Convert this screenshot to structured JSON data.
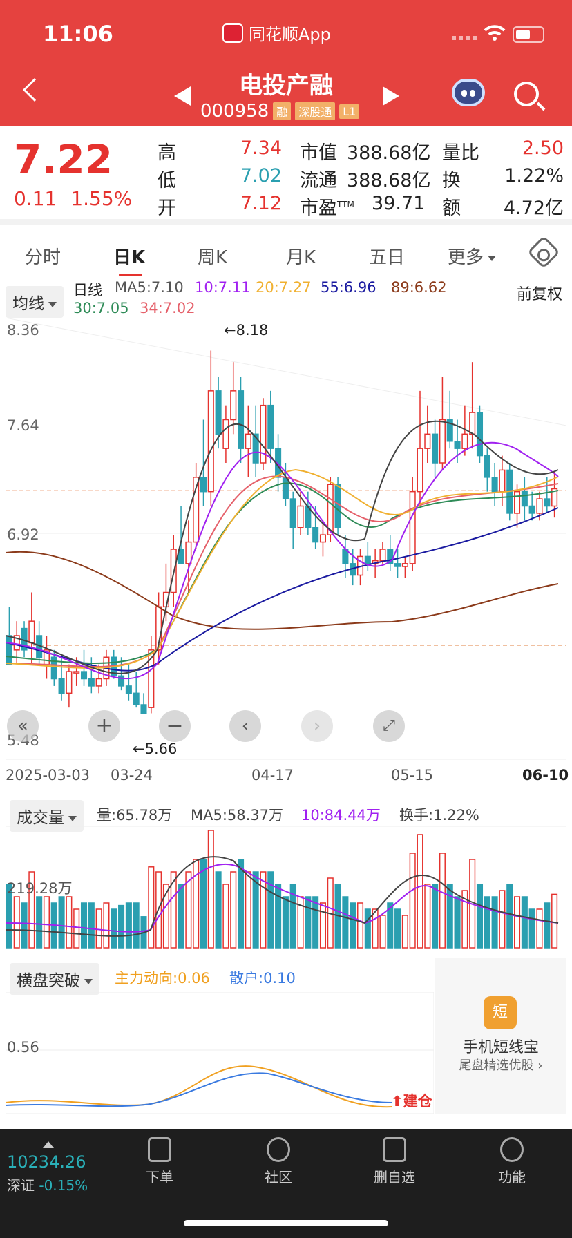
{
  "status_bar": {
    "time": "11:06",
    "app": "同花顺App"
  },
  "header": {
    "title": "电投产融",
    "code": "000958",
    "tags": [
      "融",
      "深股通",
      "L1"
    ]
  },
  "quote": {
    "price": "7.22",
    "change": "0.11",
    "change_pct": "1.55%",
    "rows": [
      {
        "l1": "高",
        "v1": "7.34",
        "l2": "市值",
        "v2": "388.68亿",
        "l3": "量比",
        "v3": "2.50"
      },
      {
        "l1": "低",
        "v1": "7.02",
        "l2": "流通",
        "v2": "388.68亿",
        "l3": "换",
        "v3": "1.22%"
      },
      {
        "l1": "开",
        "v1": "7.12",
        "l2": "市盈",
        "v2": "39.71",
        "l3": "额",
        "v3": "4.72亿"
      }
    ],
    "pe_sup": "TTM",
    "colors": {
      "up": "#e5322e",
      "down": "#2a9fb0"
    }
  },
  "tabs": [
    "分时",
    "日K",
    "周K",
    "月K",
    "五日",
    "更多"
  ],
  "active_tab": "日K",
  "ma_panel": {
    "selector": "均线",
    "period": "日线",
    "rights": "前复权",
    "items": [
      {
        "label": "MA5:7.10",
        "color": "#555555"
      },
      {
        "label": "10:7.11",
        "color": "#a020f0"
      },
      {
        "label": "20:7.27",
        "color": "#f0b030"
      },
      {
        "label": "55:6.96",
        "color": "#1a1aa0"
      },
      {
        "label": "89:6.62",
        "color": "#8b3a1a"
      },
      {
        "label": "30:7.05",
        "color": "#2e8b57"
      },
      {
        "label": "34:7.02",
        "color": "#e5606a"
      }
    ],
    "y_labels": [
      "8.36",
      "7.64",
      "6.92",
      "5.48"
    ],
    "max_note": "←8.18",
    "min_note": "←5.66",
    "x_labels": [
      "2025-03-03",
      "03-24",
      "04-17",
      "05-15",
      "06-10"
    ]
  },
  "chart_data": {
    "type": "candlestick",
    "ylim": [
      5.48,
      8.36
    ],
    "ohlc": [
      [
        6.2,
        6.4,
        6.0,
        6.0
      ],
      [
        6.1,
        6.3,
        6.0,
        6.2
      ],
      [
        6.25,
        6.3,
        6.05,
        6.1
      ],
      [
        6.15,
        6.5,
        6.0,
        6.3
      ],
      [
        6.2,
        6.3,
        6.0,
        6.05
      ],
      [
        6.0,
        6.2,
        5.9,
        6.1
      ],
      [
        6.05,
        6.1,
        5.85,
        5.9
      ],
      [
        5.9,
        6.05,
        5.75,
        5.8
      ],
      [
        5.8,
        6.0,
        5.7,
        5.95
      ],
      [
        5.95,
        6.05,
        5.85,
        5.95
      ],
      [
        5.95,
        6.1,
        5.85,
        5.9
      ],
      [
        5.9,
        6.05,
        5.8,
        5.85
      ],
      [
        5.85,
        6.0,
        5.8,
        5.9
      ],
      [
        5.9,
        6.1,
        5.85,
        6.05
      ],
      [
        6.05,
        6.1,
        5.9,
        5.92
      ],
      [
        5.92,
        6.05,
        5.82,
        5.85
      ],
      [
        5.85,
        6.0,
        5.75,
        5.8
      ],
      [
        5.8,
        5.95,
        5.7,
        5.72
      ],
      [
        5.72,
        5.8,
        5.66,
        5.66
      ],
      [
        5.7,
        6.2,
        5.66,
        6.1
      ],
      [
        6.1,
        6.5,
        6.0,
        6.4
      ],
      [
        6.4,
        6.7,
        6.3,
        6.5
      ],
      [
        6.5,
        6.9,
        6.4,
        6.8
      ],
      [
        6.8,
        7.1,
        6.7,
        6.7
      ],
      [
        6.7,
        7.0,
        6.5,
        6.85
      ],
      [
        6.85,
        7.4,
        6.8,
        7.3
      ],
      [
        7.3,
        7.7,
        7.1,
        7.2
      ],
      [
        7.2,
        8.18,
        7.1,
        7.9
      ],
      [
        7.9,
        8.0,
        7.5,
        7.6
      ],
      [
        7.5,
        7.8,
        7.4,
        7.7
      ],
      [
        7.7,
        8.1,
        7.6,
        7.9
      ],
      [
        7.9,
        8.0,
        7.4,
        7.5
      ],
      [
        7.5,
        7.8,
        7.3,
        7.6
      ],
      [
        7.6,
        7.8,
        7.3,
        7.4
      ],
      [
        7.4,
        7.85,
        7.35,
        7.8
      ],
      [
        7.8,
        7.9,
        7.4,
        7.5
      ],
      [
        7.5,
        7.6,
        7.2,
        7.3
      ],
      [
        7.3,
        7.4,
        7.1,
        7.15
      ],
      [
        7.15,
        7.2,
        6.8,
        6.95
      ],
      [
        6.95,
        7.2,
        6.9,
        7.1
      ],
      [
        7.1,
        7.2,
        6.9,
        6.95
      ],
      [
        6.95,
        7.1,
        6.8,
        6.85
      ],
      [
        6.85,
        7.0,
        6.75,
        6.9
      ],
      [
        6.9,
        7.3,
        6.85,
        7.25
      ],
      [
        7.25,
        7.3,
        6.9,
        6.95
      ],
      [
        6.8,
        6.9,
        6.6,
        6.7
      ],
      [
        6.7,
        6.8,
        6.55,
        6.62
      ],
      [
        6.62,
        6.8,
        6.55,
        6.75
      ],
      [
        6.75,
        6.85,
        6.65,
        6.7
      ],
      [
        6.7,
        6.8,
        6.6,
        6.72
      ],
      [
        6.72,
        6.85,
        6.7,
        6.8
      ],
      [
        6.8,
        6.9,
        6.65,
        6.7
      ],
      [
        6.7,
        6.8,
        6.6,
        6.68
      ],
      [
        6.68,
        6.75,
        6.6,
        6.7
      ],
      [
        6.7,
        7.3,
        6.65,
        7.2
      ],
      [
        7.2,
        7.9,
        7.1,
        7.5
      ],
      [
        7.5,
        7.8,
        7.4,
        7.6
      ],
      [
        7.6,
        7.7,
        7.3,
        7.4
      ],
      [
        7.4,
        8.0,
        7.35,
        7.7
      ],
      [
        7.7,
        7.9,
        7.5,
        7.55
      ],
      [
        7.55,
        7.7,
        7.4,
        7.5
      ],
      [
        7.5,
        7.8,
        7.45,
        7.6
      ],
      [
        7.6,
        8.1,
        7.5,
        7.75
      ],
      [
        7.75,
        7.8,
        7.4,
        7.45
      ],
      [
        7.45,
        7.5,
        7.2,
        7.3
      ],
      [
        7.3,
        7.4,
        7.1,
        7.2
      ],
      [
        7.2,
        7.45,
        7.1,
        7.35
      ],
      [
        7.35,
        7.4,
        7.0,
        7.05
      ],
      [
        7.05,
        7.25,
        6.95,
        7.2
      ],
      [
        7.2,
        7.3,
        7.0,
        7.1
      ],
      [
        7.1,
        7.2,
        7.0,
        7.05
      ],
      [
        7.05,
        7.2,
        7.0,
        7.15
      ],
      [
        7.15,
        7.3,
        7.05,
        7.1
      ],
      [
        7.1,
        7.34,
        7.02,
        7.22
      ]
    ],
    "volume_label": "219.28万",
    "osc_label": "0.56"
  },
  "volume_panel": {
    "selector": "成交量",
    "vol": "量:65.78万",
    "ma5": "MA5:58.37万",
    "ma10": "10:84.44万",
    "turnover": "换手:1.22%"
  },
  "osc_panel": {
    "selector": "横盘突破",
    "main": "主力动向:0.06",
    "retail": "散户:0.10",
    "signal": "建仓"
  },
  "ad": {
    "icon": "短",
    "title": "手机短线宝",
    "sub": "尾盘精选优股"
  },
  "index": {
    "value": "10234.26",
    "name": "深证",
    "pct": "-0.15%"
  },
  "nav": [
    "下单",
    "社区",
    "删自选",
    "功能"
  ]
}
